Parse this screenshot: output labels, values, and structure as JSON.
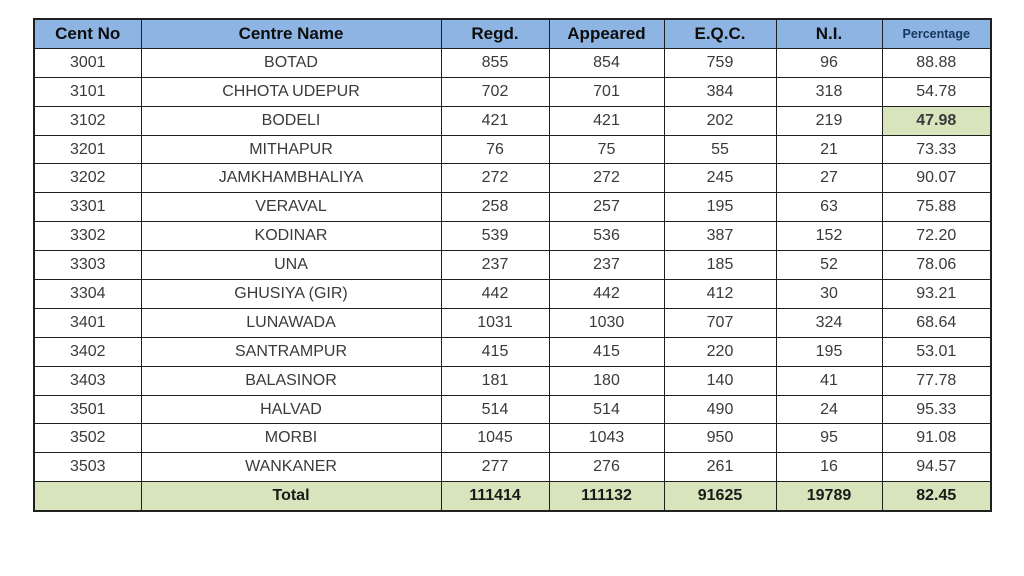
{
  "table": {
    "columns": [
      {
        "key": "cent_no",
        "label": "Cent No"
      },
      {
        "key": "centre_name",
        "label": "Centre Name"
      },
      {
        "key": "regd",
        "label": "Regd."
      },
      {
        "key": "appeared",
        "label": "Appeared"
      },
      {
        "key": "eqc",
        "label": "E.Q.C."
      },
      {
        "key": "ni",
        "label": "N.I."
      },
      {
        "key": "percentage",
        "label": "Percentage"
      }
    ],
    "rows": [
      [
        "3001",
        "BOTAD",
        "855",
        "854",
        "759",
        "96",
        "88.88"
      ],
      [
        "3101",
        "CHHOTA UDEPUR",
        "702",
        "701",
        "384",
        "318",
        "54.78"
      ],
      [
        "3102",
        "BODELI",
        "421",
        "421",
        "202",
        "219",
        "47.98"
      ],
      [
        "3201",
        "MITHAPUR",
        "76",
        "75",
        "55",
        "21",
        "73.33"
      ],
      [
        "3202",
        "JAMKHAMBHALIYA",
        "272",
        "272",
        "245",
        "27",
        "90.07"
      ],
      [
        "3301",
        "VERAVAL",
        "258",
        "257",
        "195",
        "63",
        "75.88"
      ],
      [
        "3302",
        "KODINAR",
        "539",
        "536",
        "387",
        "152",
        "72.20"
      ],
      [
        "3303",
        "UNA",
        "237",
        "237",
        "185",
        "52",
        "78.06"
      ],
      [
        "3304",
        "GHUSIYA (GIR)",
        "442",
        "442",
        "412",
        "30",
        "93.21"
      ],
      [
        "3401",
        "LUNAWADA",
        "1031",
        "1030",
        "707",
        "324",
        "68.64"
      ],
      [
        "3402",
        "SANTRAMPUR",
        "415",
        "415",
        "220",
        "195",
        "53.01"
      ],
      [
        "3403",
        "BALASINOR",
        "181",
        "180",
        "140",
        "41",
        "77.78"
      ],
      [
        "3501",
        "HALVAD",
        "514",
        "514",
        "490",
        "24",
        "95.33"
      ],
      [
        "3502",
        "MORBI",
        "1045",
        "1043",
        "950",
        "95",
        "91.08"
      ],
      [
        "3503",
        "WANKANER",
        "277",
        "276",
        "261",
        "16",
        "94.57"
      ]
    ],
    "highlight": {
      "row_index": 2,
      "col_index": 6
    },
    "total": {
      "label": "Total",
      "cent_no": "",
      "regd": "111414",
      "appeared": "111132",
      "eqc": "91625",
      "ni": "19789",
      "percentage": "82.45"
    }
  },
  "colors": {
    "header_bg": "#8db4e2",
    "header_text": "#0d0d0d",
    "percentage_header_text": "#17365d",
    "total_row_bg": "#d8e4bc",
    "highlight_cell_bg": "#d8e4bc",
    "border": "#1f1f1f",
    "body_text": "#3a3a3a"
  }
}
